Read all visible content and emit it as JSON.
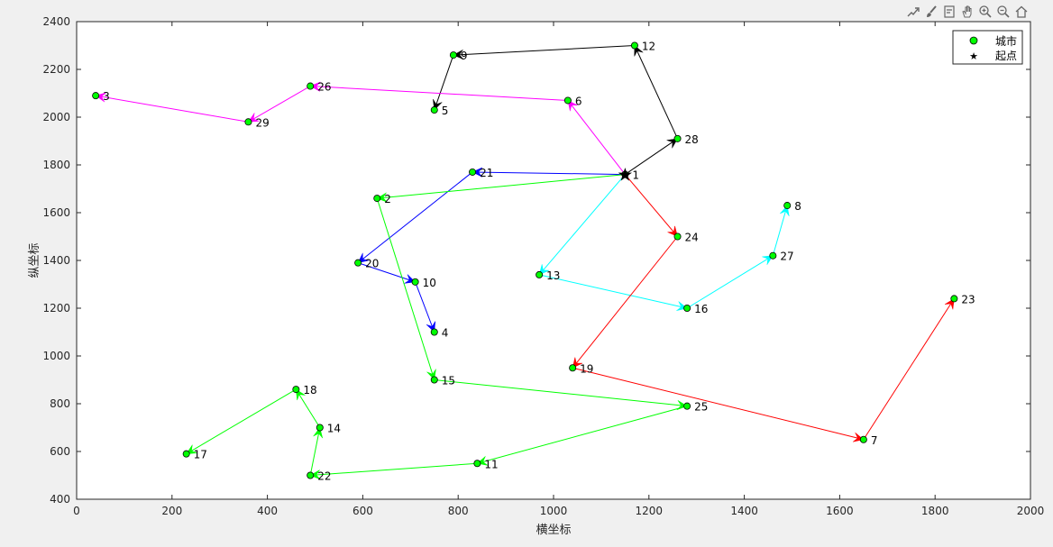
{
  "toolbar": {
    "icons": [
      "export-icon",
      "brush-icon",
      "datatip-icon",
      "pan-icon",
      "zoom-in-icon",
      "zoom-out-icon",
      "home-icon"
    ]
  },
  "chart_data": {
    "type": "line",
    "xlabel": "横坐标",
    "ylabel": "纵坐标",
    "xlim": [
      0,
      2000
    ],
    "ylim": [
      400,
      2400
    ],
    "xticks": [
      0,
      200,
      400,
      600,
      800,
      1000,
      1200,
      1400,
      1600,
      1800,
      2000
    ],
    "yticks": [
      400,
      600,
      800,
      1000,
      1200,
      1400,
      1600,
      1800,
      2000,
      2200,
      2400
    ],
    "grid": false,
    "legend": {
      "placement": "top-right",
      "entries": [
        {
          "label": "城市",
          "marker": "circle",
          "color": "#00ff00"
        },
        {
          "label": "起点",
          "marker": "star",
          "color": "#000000"
        }
      ]
    },
    "start_city": 1,
    "cities": [
      {
        "id": 1,
        "x": 1150,
        "y": 1760
      },
      {
        "id": 2,
        "x": 630,
        "y": 1660
      },
      {
        "id": 3,
        "x": 40,
        "y": 2090
      },
      {
        "id": 4,
        "x": 750,
        "y": 1100
      },
      {
        "id": 5,
        "x": 750,
        "y": 2030
      },
      {
        "id": 6,
        "x": 1030,
        "y": 2070
      },
      {
        "id": 7,
        "x": 1650,
        "y": 650
      },
      {
        "id": 8,
        "x": 1490,
        "y": 1630
      },
      {
        "id": 9,
        "x": 790,
        "y": 2260
      },
      {
        "id": 10,
        "x": 710,
        "y": 1310
      },
      {
        "id": 11,
        "x": 840,
        "y": 550
      },
      {
        "id": 12,
        "x": 1170,
        "y": 2300
      },
      {
        "id": 13,
        "x": 970,
        "y": 1340
      },
      {
        "id": 14,
        "x": 510,
        "y": 700
      },
      {
        "id": 15,
        "x": 750,
        "y": 900
      },
      {
        "id": 16,
        "x": 1280,
        "y": 1200
      },
      {
        "id": 17,
        "x": 230,
        "y": 590
      },
      {
        "id": 18,
        "x": 460,
        "y": 860
      },
      {
        "id": 19,
        "x": 1040,
        "y": 950
      },
      {
        "id": 20,
        "x": 590,
        "y": 1390
      },
      {
        "id": 21,
        "x": 830,
        "y": 1770
      },
      {
        "id": 22,
        "x": 490,
        "y": 500
      },
      {
        "id": 23,
        "x": 1840,
        "y": 1240
      },
      {
        "id": 24,
        "x": 1260,
        "y": 1500
      },
      {
        "id": 25,
        "x": 1280,
        "y": 790
      },
      {
        "id": 26,
        "x": 490,
        "y": 2130
      },
      {
        "id": 27,
        "x": 1460,
        "y": 1420
      },
      {
        "id": 28,
        "x": 1260,
        "y": 1910
      },
      {
        "id": 29,
        "x": 360,
        "y": 1980
      }
    ],
    "routes": [
      {
        "color": "#000000",
        "path": [
          1,
          28,
          12,
          9,
          5
        ]
      },
      {
        "color": "#ff00ff",
        "path": [
          1,
          6,
          26,
          29,
          3
        ]
      },
      {
        "color": "#0000ff",
        "path": [
          1,
          21,
          20,
          10,
          4
        ]
      },
      {
        "color": "#00ff00",
        "path": [
          1,
          2,
          15,
          25,
          11,
          22,
          14,
          18,
          17
        ]
      },
      {
        "color": "#00ffff",
        "path": [
          1,
          13,
          16,
          27,
          8
        ]
      },
      {
        "color": "#ff0000",
        "path": [
          1,
          24,
          19,
          7,
          23
        ]
      }
    ]
  }
}
